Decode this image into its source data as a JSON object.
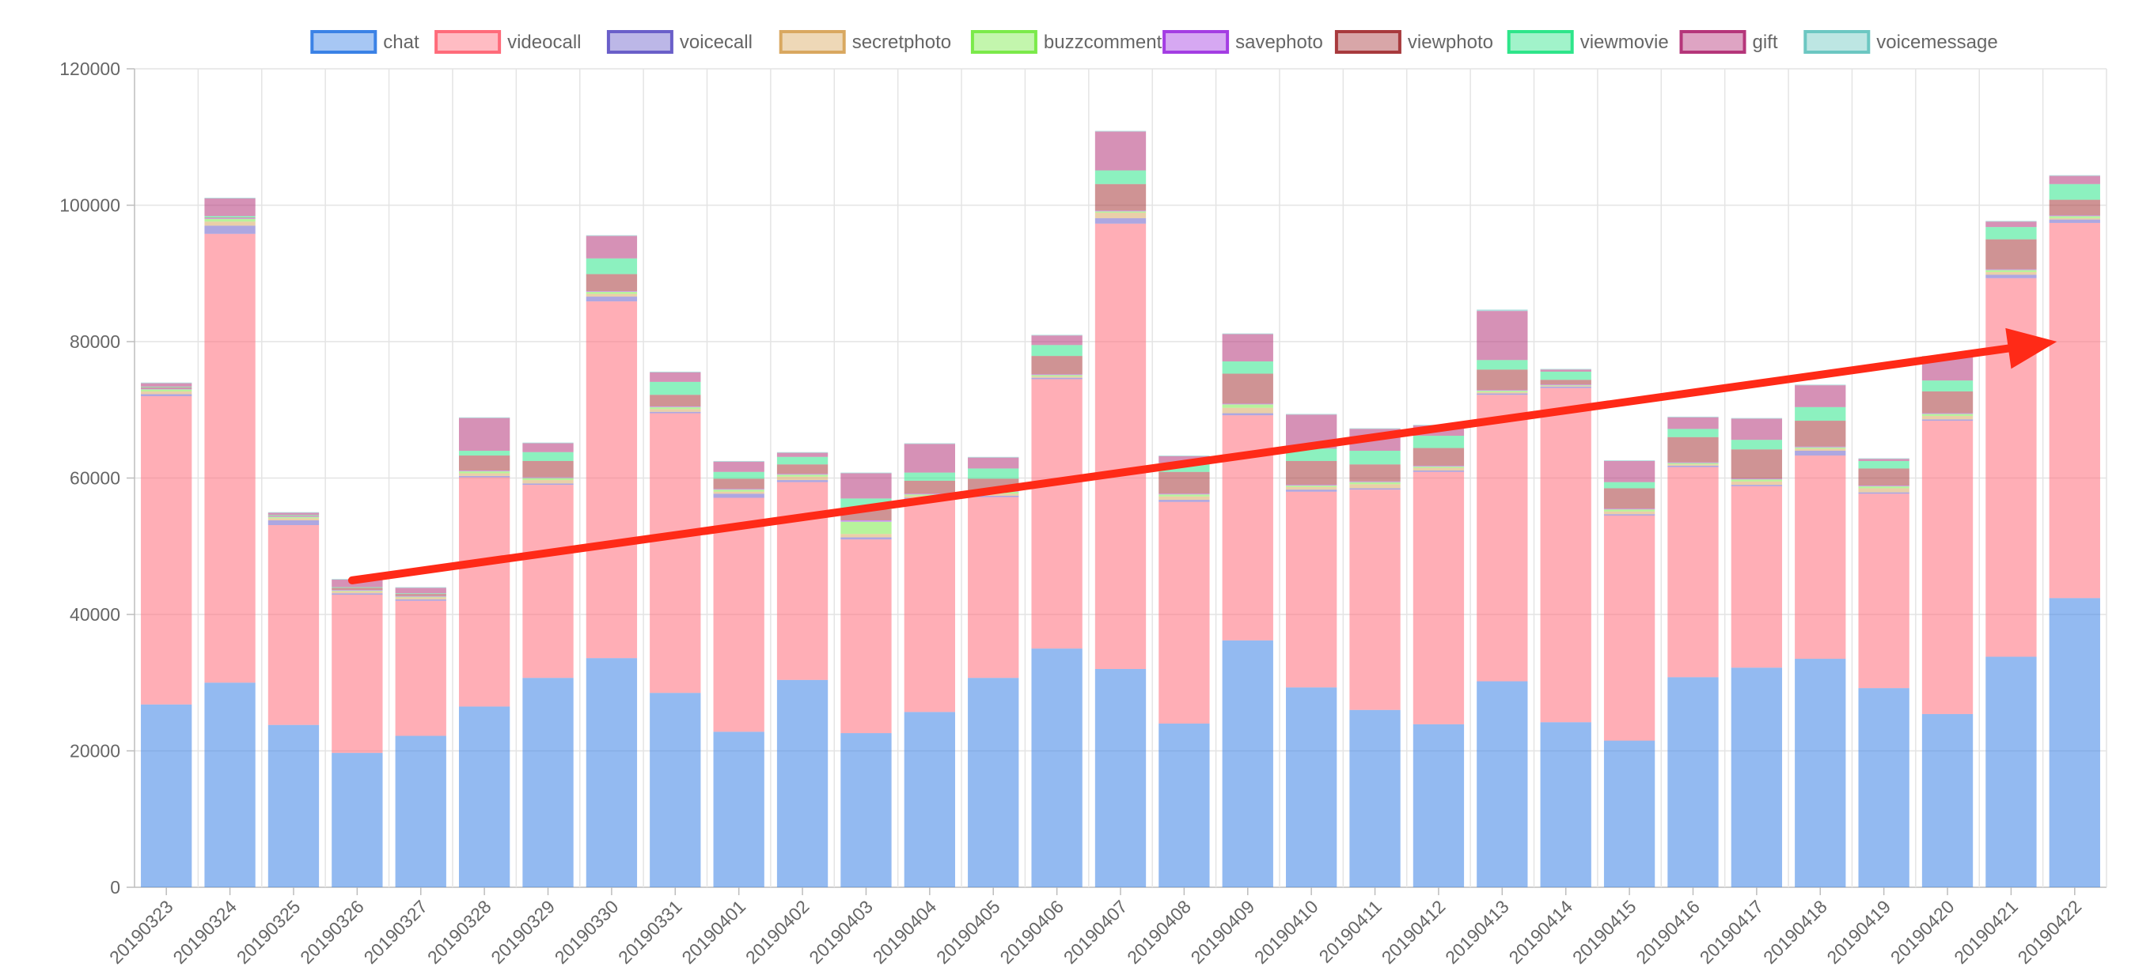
{
  "chart_data": {
    "type": "bar",
    "stacked": true,
    "categories": [
      "20190323",
      "20190324",
      "20190325",
      "20190326",
      "20190327",
      "20190328",
      "20190329",
      "20190330",
      "20190331",
      "20190401",
      "20190402",
      "20190403",
      "20190404",
      "20190405",
      "20190406",
      "20190407",
      "20190408",
      "20190409",
      "20190410",
      "20190411",
      "20190412",
      "20190413",
      "20190414",
      "20190415",
      "20190416",
      "20190417",
      "20190418",
      "20190419",
      "20190420",
      "20190421",
      "20190422"
    ],
    "ylim": [
      0,
      120000
    ],
    "yticks": [
      0,
      20000,
      40000,
      60000,
      80000,
      100000,
      120000
    ],
    "grid": true,
    "legend_position": "top",
    "series": [
      {
        "name": "chat",
        "color": "#3b82e6",
        "values": [
          26800,
          30000,
          23800,
          19700,
          22200,
          26500,
          30700,
          33600,
          28500,
          22800,
          30400,
          22600,
          25700,
          30700,
          35000,
          32000,
          24000,
          36200,
          29300,
          26000,
          23900,
          30200,
          24200,
          21500,
          30800,
          32200,
          33500,
          29200,
          25400,
          33800,
          42400
        ]
      },
      {
        "name": "videocall",
        "color": "#ff6b7a",
        "values": [
          45200,
          65800,
          29300,
          23200,
          19800,
          33600,
          28300,
          52300,
          41000,
          34300,
          29000,
          28400,
          31200,
          26500,
          39500,
          65300,
          32500,
          33000,
          28700,
          32300,
          37000,
          42000,
          49000,
          33000,
          30800,
          26600,
          29800,
          28500,
          43000,
          55500,
          55000
        ]
      },
      {
        "name": "voicecall",
        "color": "#6a5fc9",
        "values": [
          300,
          1200,
          700,
          200,
          200,
          200,
          200,
          700,
          200,
          600,
          300,
          300,
          200,
          200,
          200,
          800,
          300,
          300,
          300,
          200,
          200,
          200,
          200,
          200,
          200,
          200,
          700,
          200,
          200,
          500,
          500
        ]
      },
      {
        "name": "secretphoto",
        "color": "#d9a860",
        "values": [
          400,
          600,
          300,
          300,
          300,
          400,
          500,
          400,
          400,
          300,
          500,
          500,
          300,
          300,
          200,
          800,
          500,
          800,
          400,
          600,
          400,
          200,
          100,
          400,
          200,
          500,
          300,
          600,
          500,
          400,
          200
        ]
      },
      {
        "name": "buzzcomment",
        "color": "#7bea4a",
        "values": [
          300,
          400,
          200,
          100,
          100,
          300,
          300,
          300,
          300,
          300,
          300,
          1800,
          200,
          300,
          200,
          200,
          300,
          500,
          200,
          300,
          200,
          200,
          100,
          300,
          200,
          300,
          200,
          300,
          300,
          300,
          300
        ]
      },
      {
        "name": "savephoto",
        "color": "#a43de3",
        "values": [
          100,
          100,
          100,
          100,
          100,
          100,
          100,
          100,
          100,
          100,
          100,
          200,
          100,
          100,
          100,
          100,
          100,
          100,
          100,
          100,
          100,
          100,
          100,
          100,
          100,
          100,
          100,
          100,
          100,
          100,
          100
        ]
      },
      {
        "name": "viewphoto",
        "color": "#a83a3d",
        "values": [
          200,
          100,
          100,
          300,
          300,
          2200,
          2400,
          2500,
          1700,
          1500,
          1400,
          1600,
          1900,
          1800,
          2700,
          3900,
          3200,
          4400,
          3500,
          2500,
          2600,
          3000,
          700,
          3000,
          3700,
          4300,
          3800,
          2500,
          3200,
          4400,
          2300
        ]
      },
      {
        "name": "viewmovie",
        "color": "#2ee58a",
        "values": [
          100,
          200,
          100,
          100,
          100,
          700,
          1300,
          2300,
          1900,
          1000,
          1100,
          1600,
          1200,
          1500,
          1600,
          2000,
          1300,
          1800,
          1800,
          2000,
          1800,
          1400,
          1200,
          900,
          1200,
          1400,
          2000,
          1100,
          1600,
          1800,
          2300
        ]
      },
      {
        "name": "gift",
        "color": "#b5367a",
        "values": [
          500,
          2600,
          300,
          1100,
          800,
          4800,
          1300,
          3300,
          1400,
          1500,
          600,
          3700,
          4200,
          1600,
          1400,
          5700,
          1000,
          4000,
          5000,
          3200,
          1500,
          7200,
          300,
          3100,
          1700,
          3100,
          3200,
          300,
          3500,
          800,
          1200
        ]
      },
      {
        "name": "voicemessage",
        "color": "#6cc7c2",
        "values": [
          100,
          100,
          100,
          100,
          100,
          100,
          100,
          100,
          100,
          100,
          100,
          100,
          100,
          100,
          100,
          100,
          100,
          100,
          100,
          100,
          100,
          200,
          100,
          100,
          100,
          100,
          100,
          100,
          100,
          100,
          100
        ]
      }
    ],
    "annotation": {
      "type": "arrow",
      "color": "#ff2a17",
      "from": {
        "x": "20190326",
        "y": 45000
      },
      "to": {
        "x": "20190422",
        "y": 80000
      }
    }
  }
}
